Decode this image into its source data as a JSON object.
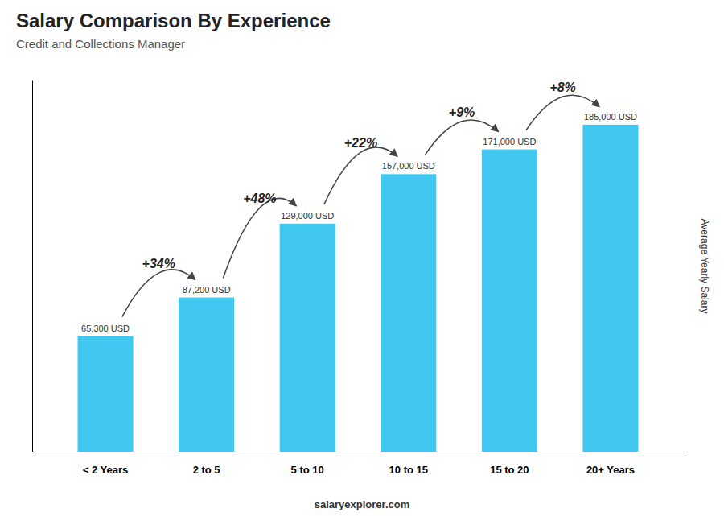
{
  "chart_data": {
    "type": "bar",
    "title": "Salary Comparison By Experience",
    "subtitle": "Credit and Collections Manager",
    "ylabel": "Average Yearly Salary",
    "categories": [
      "< 2 Years",
      "2 to 5",
      "5 to 10",
      "10 to 15",
      "15 to 20",
      "20+ Years"
    ],
    "values": [
      65300,
      87200,
      129000,
      157000,
      171000,
      185000
    ],
    "value_labels": [
      "65,300 USD",
      "87,200 USD",
      "129,000 USD",
      "157,000 USD",
      "171,000 USD",
      "185,000 USD"
    ],
    "data_labels": true,
    "annotations": [
      "+34%",
      "+48%",
      "+22%",
      "+9%",
      "+8%"
    ],
    "footer": [
      "salary",
      "explorer.com"
    ],
    "color": "#40c8f0",
    "ylim": [
      0,
      210000
    ],
    "tick_labels": "x",
    "grid": false
  }
}
